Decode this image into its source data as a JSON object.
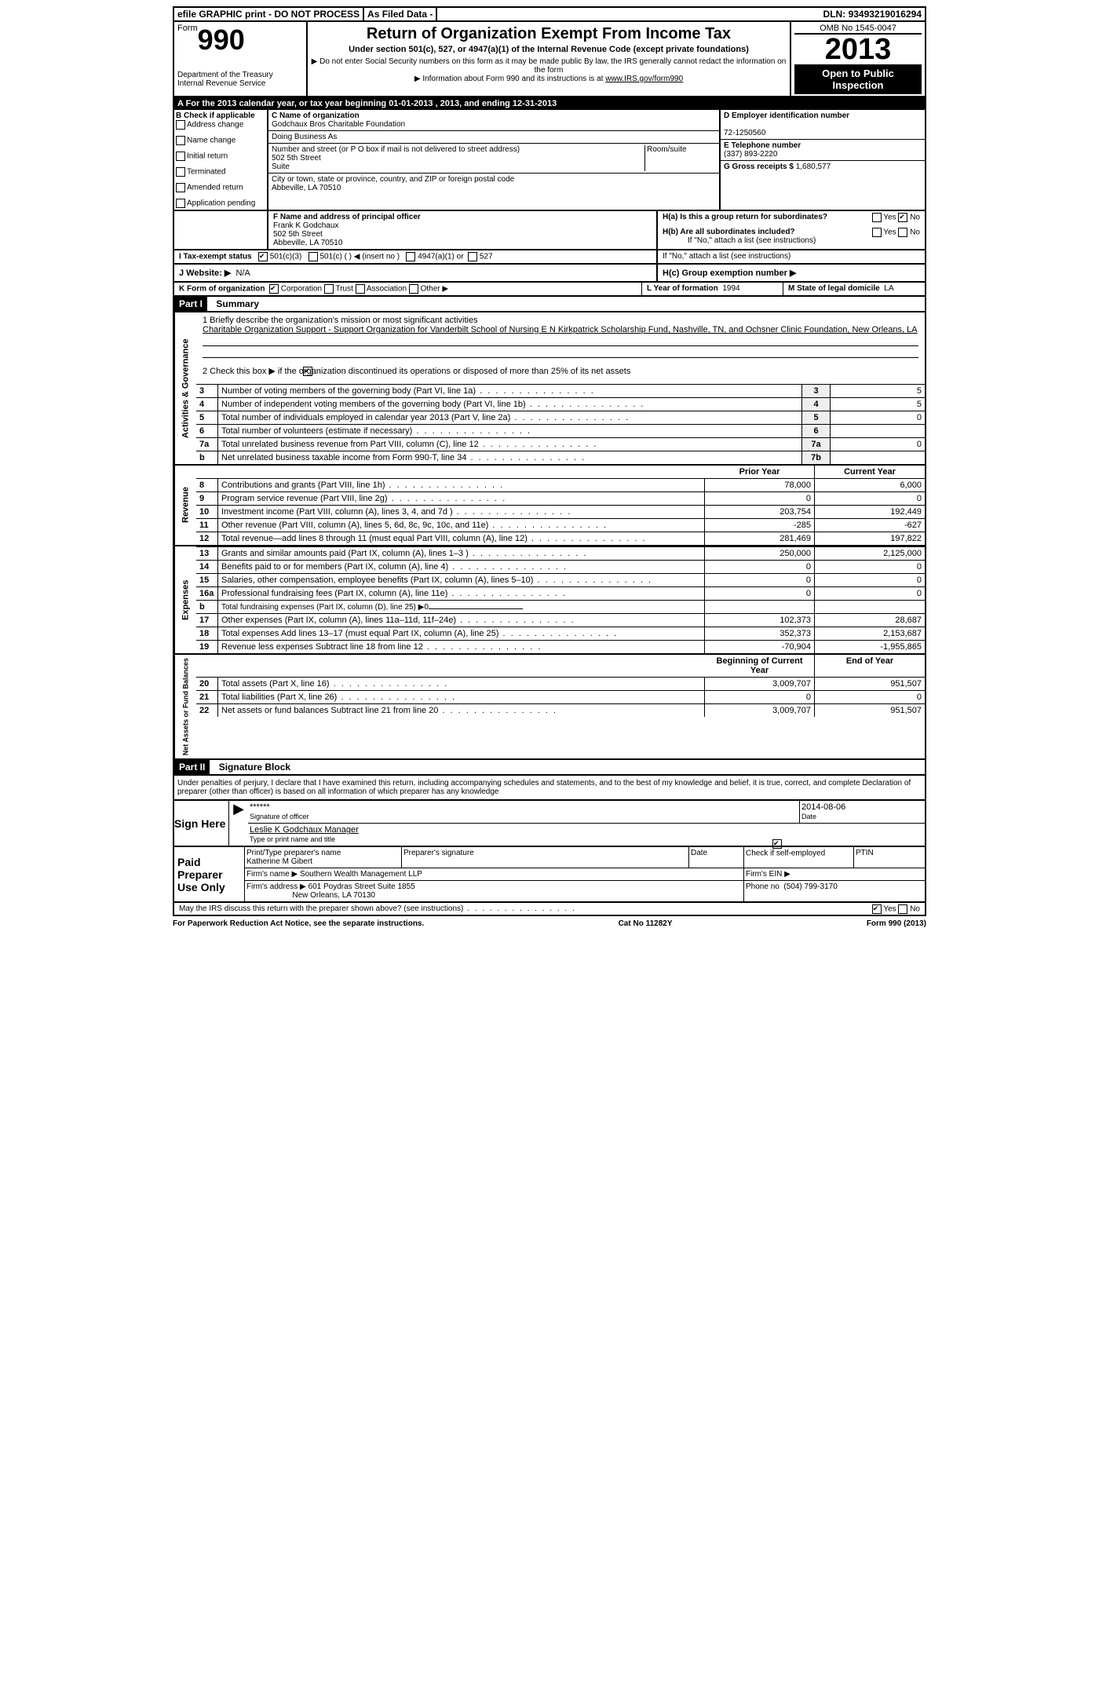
{
  "topbar": {
    "efile": "efile GRAPHIC print - DO NOT PROCESS",
    "asfiled": "As Filed Data -",
    "dln_label": "DLN:",
    "dln": "93493219016294"
  },
  "head": {
    "form_word": "Form",
    "form_num": "990",
    "dept1": "Department of the Treasury",
    "dept2": "Internal Revenue Service",
    "title": "Return of Organization Exempt From Income Tax",
    "subtitle1": "Under section 501(c), 527, or 4947(a)(1) of the Internal Revenue Code (except private foundations)",
    "subtitle2": "▶ Do not enter Social Security numbers on this form as it may be made public  By law, the IRS generally cannot redact the information on the form",
    "subtitle3": "▶ Information about Form 990 and its instructions is at",
    "subtitle3_link": "www.IRS.gov/form990",
    "omb": "OMB No  1545-0047",
    "year": "2013",
    "open": "Open to Public Inspection"
  },
  "rowA": "A  For the 2013 calendar year, or tax year beginning 01-01-2013     , 2013, and ending 12-31-2013",
  "checkB": {
    "label": "B  Check if applicable",
    "items": [
      "Address change",
      "Name change",
      "Initial return",
      "Terminated",
      "Amended return",
      "Application pending"
    ]
  },
  "boxC": {
    "label": "C Name of organization",
    "name": "Godchaux Bros Charitable Foundation",
    "dba_label": "Doing Business As",
    "addr_label": "Number and street (or P O  box if mail is not delivered to street address)",
    "room_label": "Room/suite",
    "addr": "502 5th Street",
    "suite": "Suite",
    "city_label": "City or town, state or province, country, and ZIP or foreign postal code",
    "city": "Abbeville, LA   70510"
  },
  "boxD": {
    "label": "D Employer identification number",
    "value": "72-1250560"
  },
  "boxE": {
    "label": "E Telephone number",
    "value": "(337) 893-2220"
  },
  "boxG": {
    "label": "G Gross receipts $",
    "value": "1,680,577"
  },
  "boxF": {
    "label": "F   Name and address of principal officer",
    "name": "Frank K Godchaux",
    "addr1": "502 5th Street",
    "addr2": "Abbeville, LA   70510"
  },
  "boxH": {
    "ha": "H(a)  Is this a group return for subordinates?",
    "hb": "H(b)  Are all subordinates included?",
    "hb2": "If \"No,\" attach a list  (see instructions)",
    "hc": "H(c)   Group exemption number ▶",
    "yes": "Yes",
    "no": "No"
  },
  "boxI": {
    "label": "I   Tax-exempt status",
    "c3": "501(c)(3)",
    "c": "501(c) (   ) ◀ (insert no )",
    "c4947": "4947(a)(1) or",
    "c527": "527"
  },
  "boxJ": {
    "label": "J   Website: ▶",
    "value": "N/A"
  },
  "boxK": {
    "label": "K Form of organization",
    "corp": "Corporation",
    "trust": "Trust",
    "assoc": "Association",
    "other": "Other ▶",
    "L_label": "L Year of formation",
    "L_val": "1994",
    "M_label": "M State of legal domicile",
    "M_val": "LA"
  },
  "part1": {
    "bar": "Part I",
    "title": "Summary"
  },
  "mission": {
    "q": "1    Briefly describe the organization's mission or most significant activities",
    "text": "Charitable Organization Support - Support Organization for Vanderbilt School of Nursing E N Kirkpatrick Scholarship Fund, Nashville, TN, and Ochsner Clinic Foundation, New Orleans, LA"
  },
  "line2": "2    Check this box ▶      if the organization discontinued its operations or disposed of more than 25% of its net assets",
  "gov_lines": [
    {
      "n": "3",
      "t": "Number of voting members of the governing body (Part VI, line 1a)",
      "box": "3",
      "v": "5"
    },
    {
      "n": "4",
      "t": "Number of independent voting members of the governing body (Part VI, line 1b)",
      "box": "4",
      "v": "5"
    },
    {
      "n": "5",
      "t": "Total number of individuals employed in calendar year 2013 (Part V, line 2a)",
      "box": "5",
      "v": "0"
    },
    {
      "n": "6",
      "t": "Total number of volunteers (estimate if necessary)",
      "box": "6",
      "v": ""
    },
    {
      "n": "7a",
      "t": "Total unrelated business revenue from Part VIII, column (C), line 12",
      "box": "7a",
      "v": "0"
    },
    {
      "n": "b",
      "t": "Net unrelated business taxable income from Form 990-T, line 34",
      "box": "7b",
      "v": ""
    }
  ],
  "colheads": {
    "prior": "Prior Year",
    "current": "Current Year",
    "boy": "Beginning of Current Year",
    "eoy": "End of Year"
  },
  "revenue": [
    {
      "n": "8",
      "t": "Contributions and grants (Part VIII, line 1h)",
      "p": "78,000",
      "c": "6,000"
    },
    {
      "n": "9",
      "t": "Program service revenue (Part VIII, line 2g)",
      "p": "0",
      "c": "0"
    },
    {
      "n": "10",
      "t": "Investment income (Part VIII, column (A), lines 3, 4, and 7d )",
      "p": "203,754",
      "c": "192,449"
    },
    {
      "n": "11",
      "t": "Other revenue (Part VIII, column (A), lines 5, 6d, 8c, 9c, 10c, and 11e)",
      "p": "-285",
      "c": "-627"
    },
    {
      "n": "12",
      "t": "Total revenue—add lines 8 through 11 (must equal Part VIII, column (A), line 12)",
      "p": "281,469",
      "c": "197,822"
    }
  ],
  "expenses": [
    {
      "n": "13",
      "t": "Grants and similar amounts paid (Part IX, column (A), lines 1–3 )",
      "p": "250,000",
      "c": "2,125,000"
    },
    {
      "n": "14",
      "t": "Benefits paid to or for members (Part IX, column (A), line 4)",
      "p": "0",
      "c": "0"
    },
    {
      "n": "15",
      "t": "Salaries, other compensation, employee benefits (Part IX, column (A), lines 5–10)",
      "p": "0",
      "c": "0"
    },
    {
      "n": "16a",
      "t": "Professional fundraising fees (Part IX, column (A), line 11e)",
      "p": "0",
      "c": "0"
    },
    {
      "n": "b",
      "t": "Total fundraising expenses (Part IX, column (D), line 25)  ▶0",
      "p": "",
      "c": ""
    },
    {
      "n": "17",
      "t": "Other expenses (Part IX, column (A), lines 11a–11d, 11f–24e)",
      "p": "102,373",
      "c": "28,687"
    },
    {
      "n": "18",
      "t": "Total expenses  Add lines 13–17 (must equal Part IX, column (A), line 25)",
      "p": "352,373",
      "c": "2,153,687"
    },
    {
      "n": "19",
      "t": "Revenue less expenses  Subtract line 18 from line 12",
      "p": "-70,904",
      "c": "-1,955,865"
    }
  ],
  "netassets": [
    {
      "n": "20",
      "t": "Total assets (Part X, line 16)",
      "p": "3,009,707",
      "c": "951,507"
    },
    {
      "n": "21",
      "t": "Total liabilities (Part X, line 26)",
      "p": "0",
      "c": "0"
    },
    {
      "n": "22",
      "t": "Net assets or fund balances  Subtract line 21 from line 20",
      "p": "3,009,707",
      "c": "951,507"
    }
  ],
  "sidelabels": {
    "gov": "Activities & Governance",
    "rev": "Revenue",
    "exp": "Expenses",
    "net": "Net Assets or Fund Balances"
  },
  "part2": {
    "bar": "Part II",
    "title": "Signature Block"
  },
  "perjury": "Under penalties of perjury, I declare that I have examined this return, including accompanying schedules and statements, and to the best of my knowledge and belief, it is true, correct, and complete  Declaration of preparer (other than officer) is based on all information of which preparer has any knowledge",
  "sign": {
    "here": "Sign Here",
    "sig_stars": "******",
    "sig_label": "Signature of officer",
    "date_label": "Date",
    "date": "2014-08-06",
    "name": "Leslie K Godchaux  Manager",
    "name_label": "Type or print name and title"
  },
  "paid": {
    "left": "Paid Preparer Use Only",
    "prep_name_label": "Print/Type preparer's name",
    "prep_name": "Katherine M Gibert",
    "prep_sig_label": "Preparer's signature",
    "date_label": "Date",
    "check_label": "Check       if self-employed",
    "ptin": "PTIN",
    "firm_label": "Firm's name     ▶",
    "firm": "Southern Wealth Management LLP",
    "ein_label": "Firm's EIN ▶",
    "addr_label": "Firm's address ▶",
    "addr1": "601 Poydras Street Suite 1855",
    "addr2": "New Orleans, LA  70130",
    "phone_label": "Phone no",
    "phone": "(504) 799-3170"
  },
  "discuss": {
    "q": "May the IRS discuss this return with the preparer shown above? (see instructions)",
    "yes": "Yes",
    "no": "No"
  },
  "footer": {
    "left": "For Paperwork Reduction Act Notice, see the separate instructions.",
    "mid": "Cat  No  11282Y",
    "right": "Form 990 (2013)"
  }
}
